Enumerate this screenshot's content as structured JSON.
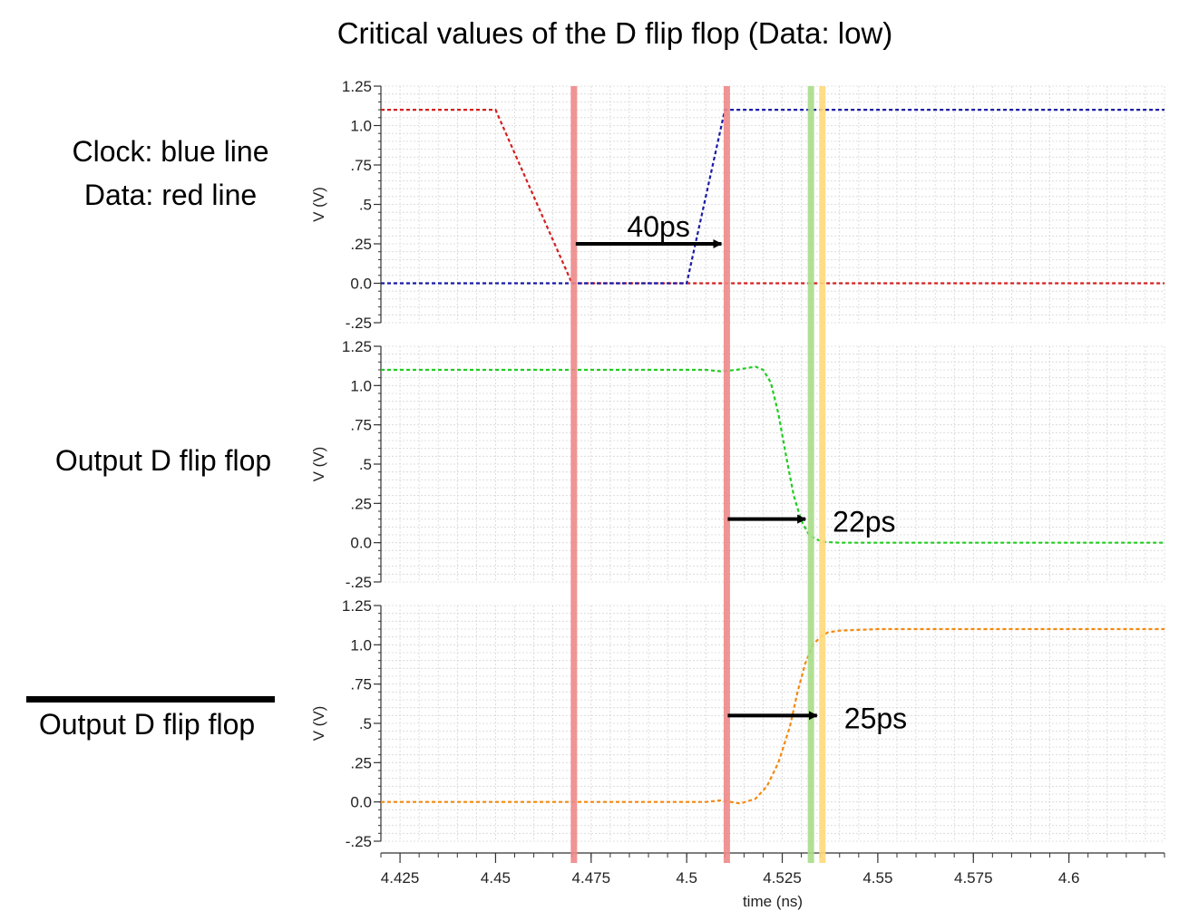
{
  "title": "Critical values of the D flip flop (Data: low)",
  "labels": {
    "clock": "Clock: blue line",
    "data": "Data: red line",
    "output": "Output D flip flop",
    "output_bar": "Output D flip flop"
  },
  "colors": {
    "clock": "#1a1aa8",
    "data": "#d42020",
    "q": "#22cc22",
    "qbar": "#f28a10",
    "marker_red": "#ee8888",
    "marker_green": "#a8dd88",
    "marker_yellow": "#ffd97a",
    "grid": "#d6d6d6"
  },
  "chart_data": {
    "type": "line",
    "xlabel": "time (ns)",
    "xlim": [
      4.42,
      4.625
    ],
    "xticks": [
      4.425,
      4.45,
      4.475,
      4.5,
      4.525,
      4.55,
      4.575,
      4.6
    ],
    "xtick_labels": [
      "4.425",
      "4.45",
      "4.475",
      "4.5",
      "4.525",
      "4.55",
      "4.575",
      "4.6"
    ],
    "panels": [
      {
        "ylabel": "V (V)",
        "ylim": [
          -0.25,
          1.25
        ],
        "yticks": [
          -0.25,
          0,
          0.25,
          0.5,
          0.75,
          1.0,
          1.25
        ],
        "ytick_labels": [
          "-.25",
          "0.0",
          ".25",
          ".5",
          ".75",
          "1.0",
          "1.25"
        ],
        "series": [
          {
            "color_key": "data",
            "x": [
              4.42,
              4.45,
              4.47,
              4.625
            ],
            "y": [
              1.1,
              1.1,
              0.0,
              0.0
            ]
          },
          {
            "color_key": "clock",
            "x": [
              4.42,
              4.5,
              4.51,
              4.625
            ],
            "y": [
              0.0,
              0.0,
              1.1,
              1.1
            ]
          }
        ]
      },
      {
        "ylabel": "V (V)",
        "ylim": [
          -0.25,
          1.25
        ],
        "yticks": [
          -0.25,
          0,
          0.25,
          0.5,
          0.75,
          1.0,
          1.25
        ],
        "ytick_labels": [
          "-.25",
          "0.0",
          ".25",
          ".5",
          ".75",
          "1.0",
          "1.25"
        ],
        "series": [
          {
            "color_key": "q",
            "x": [
              4.42,
              4.505,
              4.509,
              4.513,
              4.518,
              4.52,
              4.522,
              4.524,
              4.526,
              4.528,
              4.53,
              4.532,
              4.534,
              4.536,
              4.54,
              4.545,
              4.625
            ],
            "y": [
              1.1,
              1.1,
              1.09,
              1.1,
              1.12,
              1.1,
              1.02,
              0.82,
              0.55,
              0.3,
              0.14,
              0.05,
              0.02,
              0.005,
              0.0,
              0.0,
              0.0
            ]
          }
        ]
      },
      {
        "ylabel": "V (V)",
        "ylim": [
          -0.25,
          1.25
        ],
        "yticks": [
          -0.25,
          0,
          0.25,
          0.5,
          0.75,
          1.0,
          1.25
        ],
        "ytick_labels": [
          "-.25",
          "0.0",
          ".25",
          ".5",
          ".75",
          "1.0",
          "1.25"
        ],
        "series": [
          {
            "color_key": "qbar",
            "x": [
              4.42,
              4.505,
              4.509,
              4.514,
              4.518,
              4.521,
              4.524,
              4.527,
              4.529,
              4.531,
              4.533,
              4.535,
              4.537,
              4.54,
              4.55,
              4.625
            ],
            "y": [
              0.0,
              0.0,
              0.01,
              -0.01,
              0.02,
              0.1,
              0.25,
              0.48,
              0.7,
              0.88,
              1.0,
              1.05,
              1.08,
              1.09,
              1.1,
              1.1
            ]
          }
        ]
      }
    ],
    "markers": [
      {
        "x": 4.4705,
        "color_key": "marker_red"
      },
      {
        "x": 4.5105,
        "color_key": "marker_red"
      },
      {
        "x": 4.5325,
        "color_key": "marker_green"
      },
      {
        "x": 4.5355,
        "color_key": "marker_yellow"
      }
    ],
    "annotations": [
      {
        "text": "40ps",
        "panel": 0,
        "x_from": 4.4705,
        "x_to": 4.5105,
        "y": 0.25
      },
      {
        "text": "22ps",
        "panel": 1,
        "x_from": 4.5105,
        "x_to": 4.5325,
        "y": 0.15
      },
      {
        "text": "25ps",
        "panel": 2,
        "x_from": 4.5105,
        "x_to": 4.5355,
        "y": 0.55
      }
    ]
  }
}
